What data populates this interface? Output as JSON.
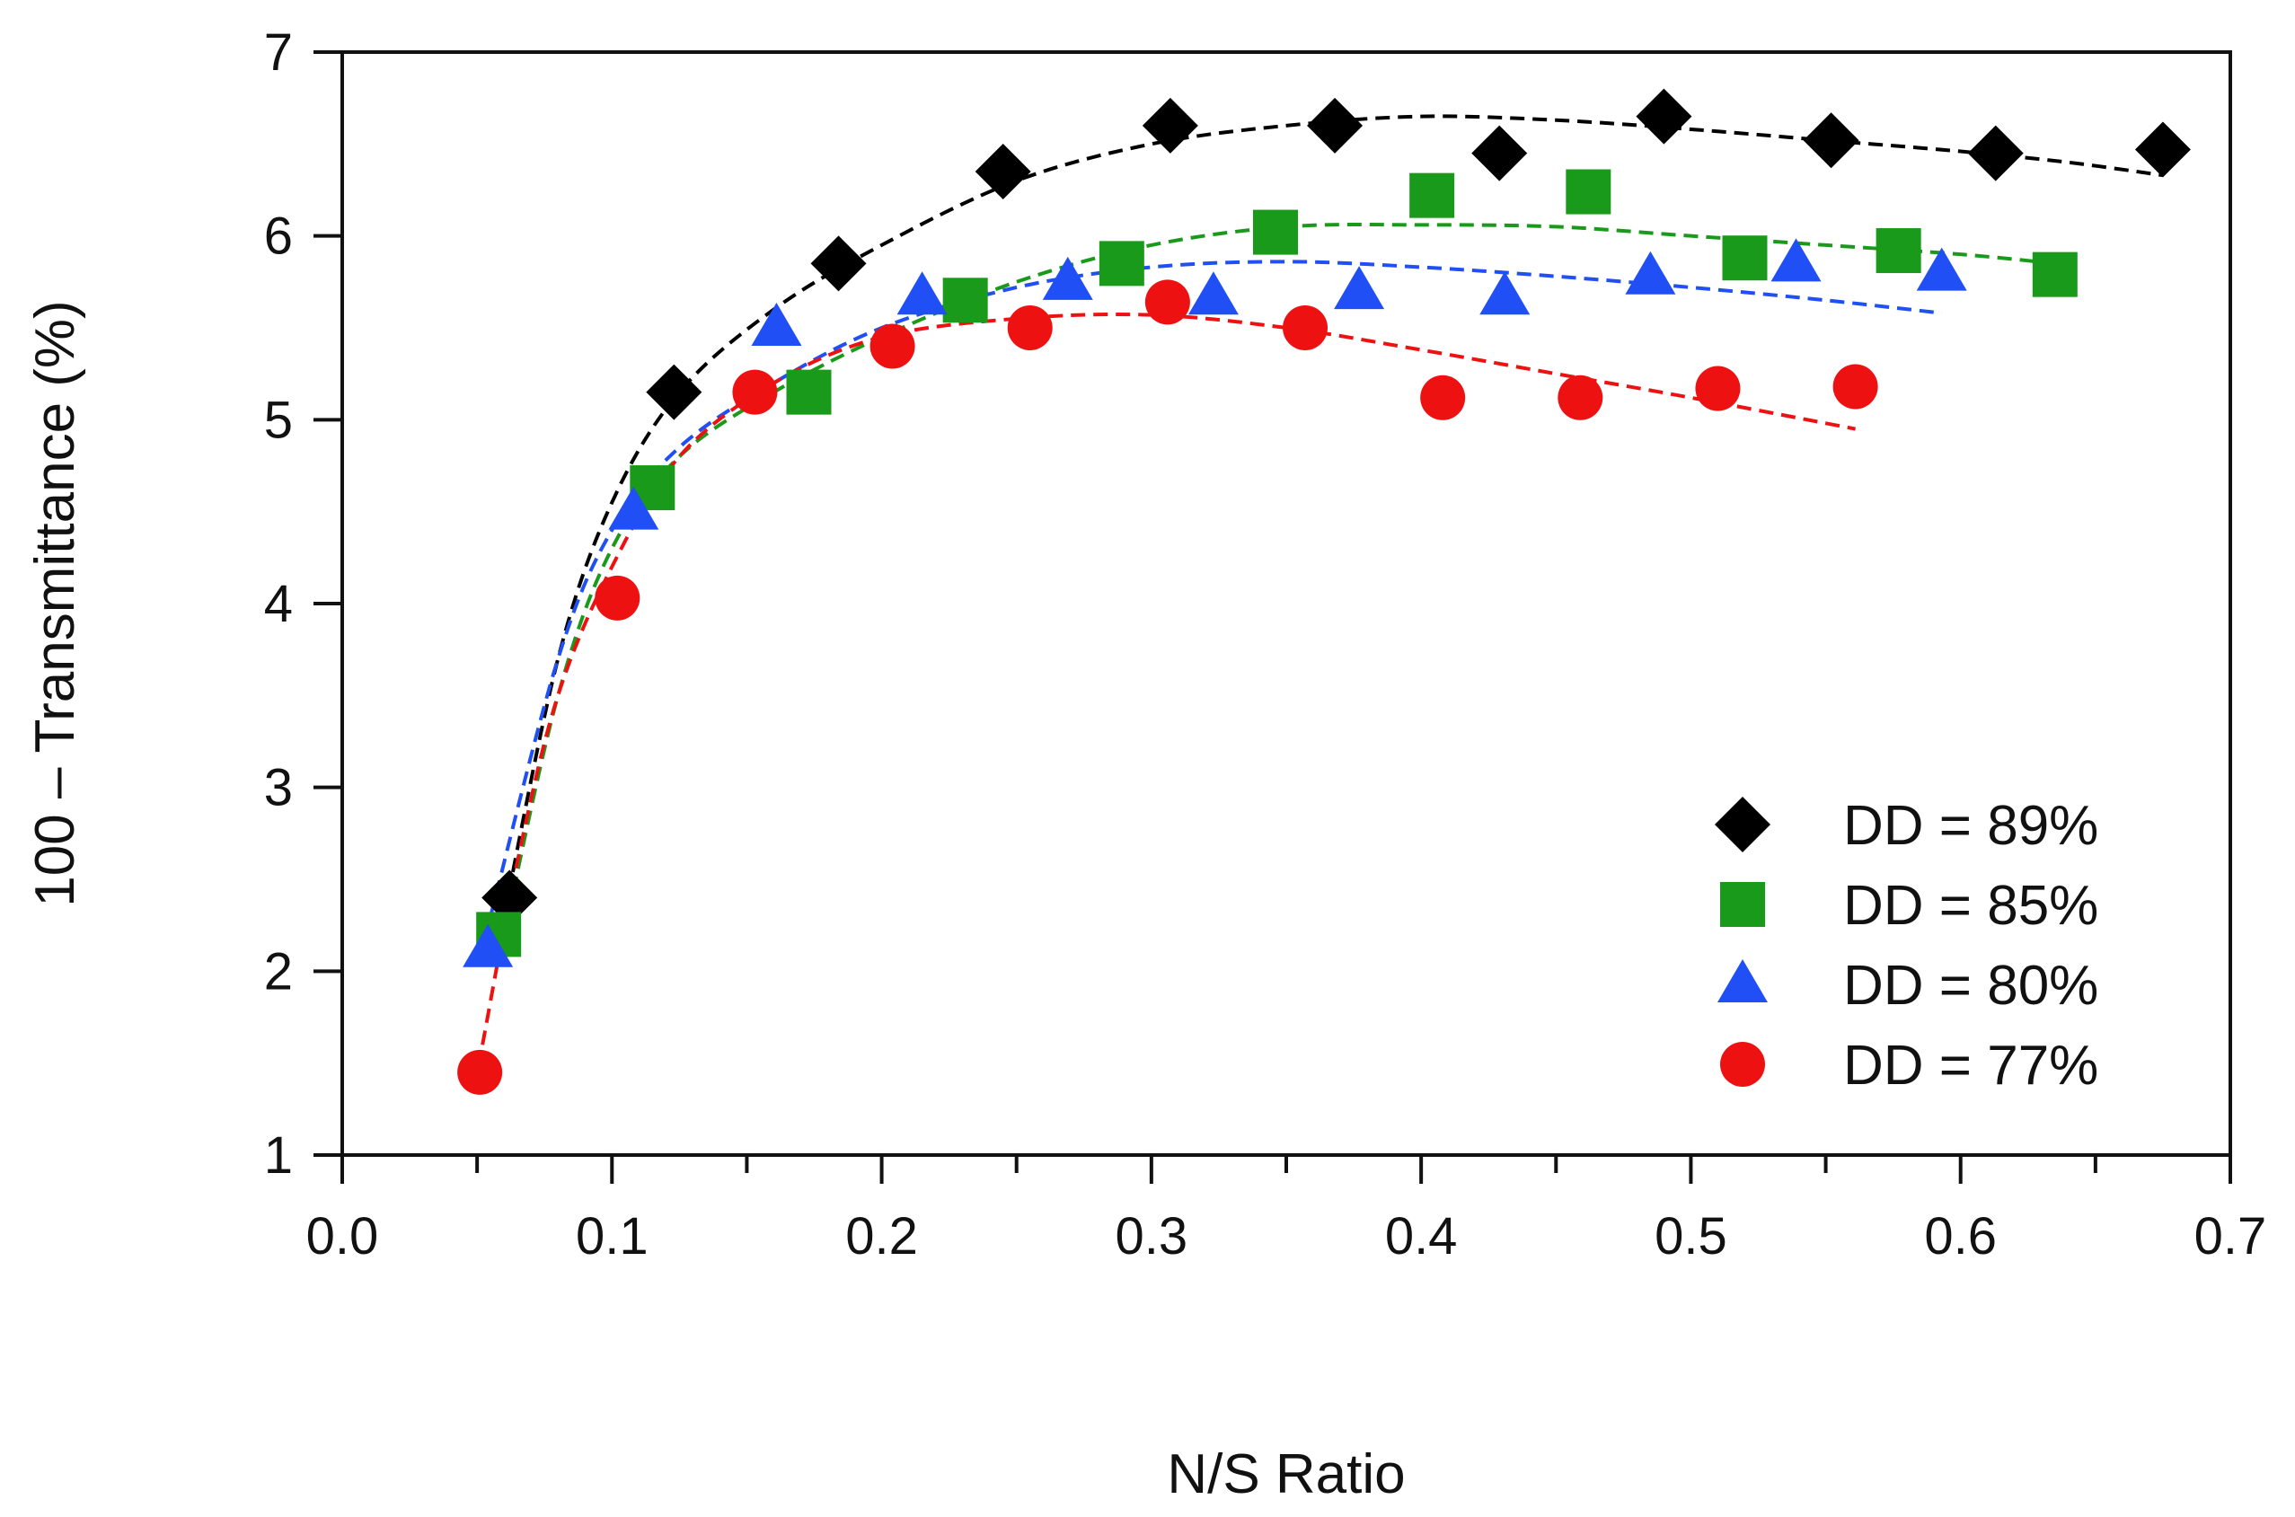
{
  "chart_data": {
    "type": "scatter",
    "title": "",
    "xlabel": "N/S Ratio",
    "ylabel": "100 – Transmittance (%)",
    "xlim": [
      0.0,
      0.7
    ],
    "ylim": [
      1,
      7
    ],
    "x_ticks": [
      "0.0",
      "0.1",
      "0.2",
      "0.3",
      "0.4",
      "0.5",
      "0.6",
      "0.7"
    ],
    "y_ticks": [
      "1",
      "2",
      "3",
      "4",
      "5",
      "6",
      "7"
    ],
    "grid": false,
    "legend_position": "bottom-right",
    "series": [
      {
        "name": "DD = 89%",
        "marker": "diamond",
        "color": "#000000",
        "x": [
          0.062,
          0.123,
          0.184,
          0.245,
          0.307,
          0.368,
          0.429,
          0.49,
          0.552,
          0.613,
          0.675
        ],
        "y": [
          2.4,
          5.15,
          5.85,
          6.35,
          6.6,
          6.6,
          6.45,
          6.65,
          6.52,
          6.45,
          6.47
        ],
        "fit": [
          [
            0.06,
            2.3
          ],
          [
            0.08,
            3.7
          ],
          [
            0.1,
            4.55
          ],
          [
            0.125,
            5.15
          ],
          [
            0.16,
            5.6
          ],
          [
            0.2,
            5.95
          ],
          [
            0.25,
            6.3
          ],
          [
            0.3,
            6.5
          ],
          [
            0.35,
            6.6
          ],
          [
            0.4,
            6.65
          ],
          [
            0.45,
            6.63
          ],
          [
            0.5,
            6.58
          ],
          [
            0.55,
            6.52
          ],
          [
            0.6,
            6.46
          ],
          [
            0.64,
            6.4
          ],
          [
            0.675,
            6.33
          ]
        ]
      },
      {
        "name": "DD = 85%",
        "marker": "square",
        "color": "#1a9a1a",
        "x": [
          0.058,
          0.115,
          0.173,
          0.231,
          0.289,
          0.346,
          0.404,
          0.462,
          0.52,
          0.577,
          0.635
        ],
        "y": [
          2.2,
          4.63,
          5.15,
          5.65,
          5.85,
          6.02,
          6.22,
          6.24,
          5.88,
          5.92,
          5.79
        ],
        "fit": [
          [
            0.06,
            2.2
          ],
          [
            0.08,
            3.5
          ],
          [
            0.1,
            4.3
          ],
          [
            0.125,
            4.8
          ],
          [
            0.16,
            5.15
          ],
          [
            0.2,
            5.45
          ],
          [
            0.25,
            5.75
          ],
          [
            0.3,
            5.95
          ],
          [
            0.35,
            6.05
          ],
          [
            0.4,
            6.06
          ],
          [
            0.45,
            6.05
          ],
          [
            0.5,
            6.0
          ],
          [
            0.55,
            5.95
          ],
          [
            0.6,
            5.9
          ],
          [
            0.635,
            5.85
          ]
        ]
      },
      {
        "name": "DD = 80%",
        "marker": "triangle",
        "color": "#1f4ff5",
        "x": [
          0.054,
          0.108,
          0.161,
          0.215,
          0.269,
          0.323,
          0.377,
          0.431,
          0.485,
          0.539,
          0.593
        ],
        "y": [
          2.12,
          4.5,
          5.5,
          5.67,
          5.75,
          5.67,
          5.7,
          5.67,
          5.78,
          5.85,
          5.8
        ],
        "fit": [
          [
            0.055,
            2.3
          ],
          [
            0.08,
            3.7
          ],
          [
            0.1,
            4.4
          ],
          [
            0.125,
            4.85
          ],
          [
            0.16,
            5.2
          ],
          [
            0.2,
            5.5
          ],
          [
            0.25,
            5.72
          ],
          [
            0.3,
            5.83
          ],
          [
            0.35,
            5.86
          ],
          [
            0.4,
            5.83
          ],
          [
            0.45,
            5.78
          ],
          [
            0.5,
            5.72
          ],
          [
            0.55,
            5.65
          ],
          [
            0.593,
            5.58
          ]
        ]
      },
      {
        "name": "DD = 77%",
        "marker": "circle",
        "color": "#ee1111",
        "x": [
          0.051,
          0.102,
          0.153,
          0.204,
          0.255,
          0.306,
          0.357,
          0.408,
          0.459,
          0.51,
          0.561
        ],
        "y": [
          1.45,
          4.03,
          5.15,
          5.4,
          5.5,
          5.64,
          5.5,
          5.12,
          5.12,
          5.17,
          5.18
        ],
        "fit": [
          [
            0.052,
            1.6
          ],
          [
            0.065,
            2.6
          ],
          [
            0.08,
            3.5
          ],
          [
            0.1,
            4.2
          ],
          [
            0.125,
            4.8
          ],
          [
            0.16,
            5.2
          ],
          [
            0.2,
            5.45
          ],
          [
            0.25,
            5.55
          ],
          [
            0.3,
            5.57
          ],
          [
            0.35,
            5.5
          ],
          [
            0.4,
            5.38
          ],
          [
            0.45,
            5.25
          ],
          [
            0.5,
            5.12
          ],
          [
            0.561,
            4.95
          ]
        ]
      }
    ]
  }
}
